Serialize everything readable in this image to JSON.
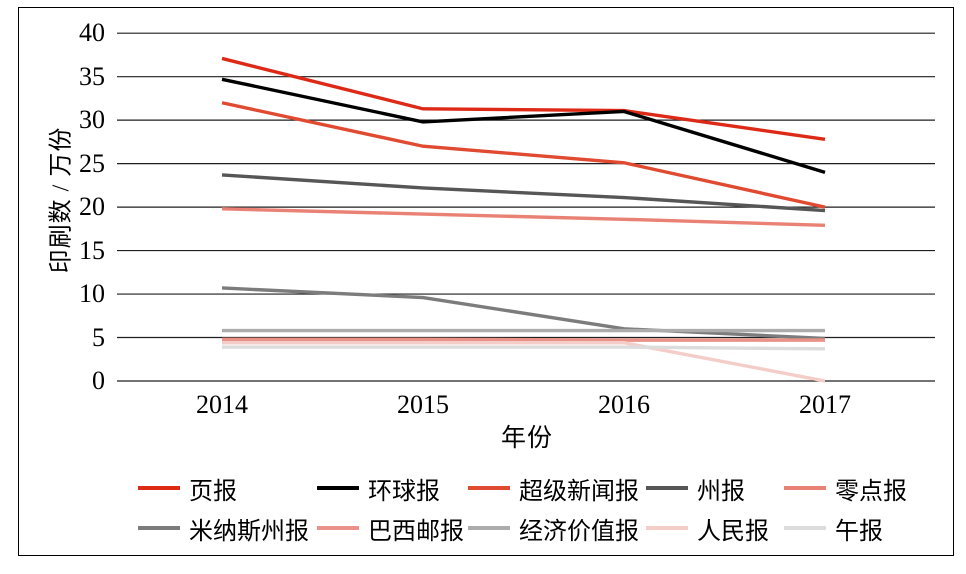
{
  "chart_data": {
    "type": "line",
    "title": "",
    "xlabel": "年份",
    "ylabel": "印刷数 / 万份",
    "x": [
      "2014",
      "2015",
      "2016",
      "2017"
    ],
    "ylim": [
      0,
      40
    ],
    "yticks": [
      0,
      5,
      10,
      15,
      20,
      25,
      30,
      35,
      40
    ],
    "grid": true,
    "gridline_color": "#1f1f1f",
    "legend_position": "bottom",
    "series": [
      {
        "name": "页报",
        "color": "#dd2a16",
        "values": [
          37.1,
          31.3,
          31.1,
          27.8
        ]
      },
      {
        "name": "环球报",
        "color": "#000000",
        "values": [
          34.7,
          29.8,
          31.0,
          24.0
        ]
      },
      {
        "name": "超级新闻报",
        "color": "#e04a31",
        "values": [
          32.0,
          27.0,
          25.1,
          20.0
        ]
      },
      {
        "name": "州报",
        "color": "#565656",
        "values": [
          23.7,
          22.2,
          21.1,
          19.6
        ]
      },
      {
        "name": "零点报",
        "color": "#e98174",
        "values": [
          19.8,
          19.2,
          18.6,
          17.9
        ]
      },
      {
        "name": "米纳斯州报",
        "color": "#7c7c7c",
        "values": [
          10.7,
          9.6,
          6.0,
          4.9
        ]
      },
      {
        "name": "巴西邮报",
        "color": "#ea9287",
        "values": [
          4.8,
          4.8,
          4.7,
          4.7
        ]
      },
      {
        "name": "经济价值报",
        "color": "#acacac",
        "values": [
          5.8,
          5.8,
          5.8,
          5.8
        ]
      },
      {
        "name": "人民报",
        "color": "#f5cdc8",
        "values": [
          4.4,
          4.4,
          4.4,
          0.0
        ]
      },
      {
        "name": "午报",
        "color": "#dcdcdc",
        "values": [
          3.9,
          3.9,
          3.9,
          3.7
        ]
      }
    ]
  }
}
